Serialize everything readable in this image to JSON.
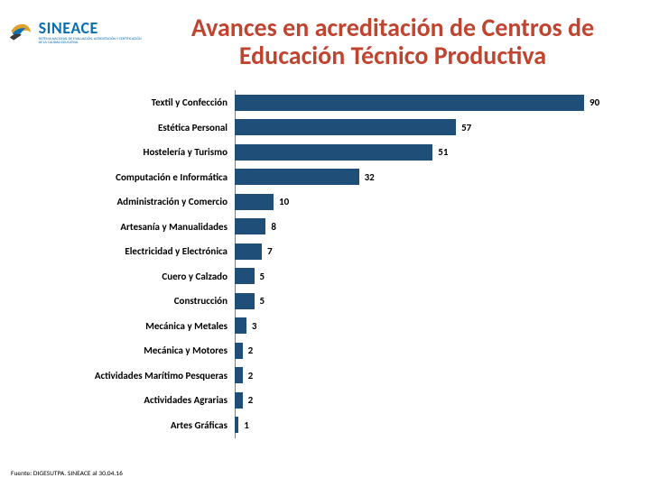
{
  "logo": {
    "main": "SINEACE",
    "sub": "SISTEMA NACIONAL DE EVALUACIÓN, ACREDITACIÓN Y CERTIFICACIÓN DE LA CALIDAD EDUCATIVA"
  },
  "title": {
    "text": "Avances en acreditación de Centros de Educación Técnico Productiva",
    "fontsize": 28,
    "color": "#c04530"
  },
  "chart": {
    "type": "bar",
    "orientation": "horizontal",
    "bar_color": "#1f4e79",
    "label_color": "#000000",
    "label_fontsize": 11,
    "value_fontsize": 11,
    "xlim": [
      0,
      100
    ],
    "categories": [
      "Textil y Confección",
      "Estética Personal",
      "Hostelería y Turismo",
      "Computación e Informática",
      "Administración y Comercio",
      "Artesanía y Manualidades",
      "Electricidad y Electrónica",
      "Cuero y Calzado",
      "Construcción",
      "Mecánica y Metales",
      "Mecánica y Motores",
      "Actividades Marítimo Pesqueras",
      "Actividades Agrarias",
      "Artes Gráficas"
    ],
    "values": [
      90,
      57,
      51,
      32,
      10,
      8,
      7,
      5,
      5,
      3,
      2,
      2,
      2,
      1
    ]
  },
  "source": "Fuente: DIGESUTPA. SINEACE al   30.04.16"
}
